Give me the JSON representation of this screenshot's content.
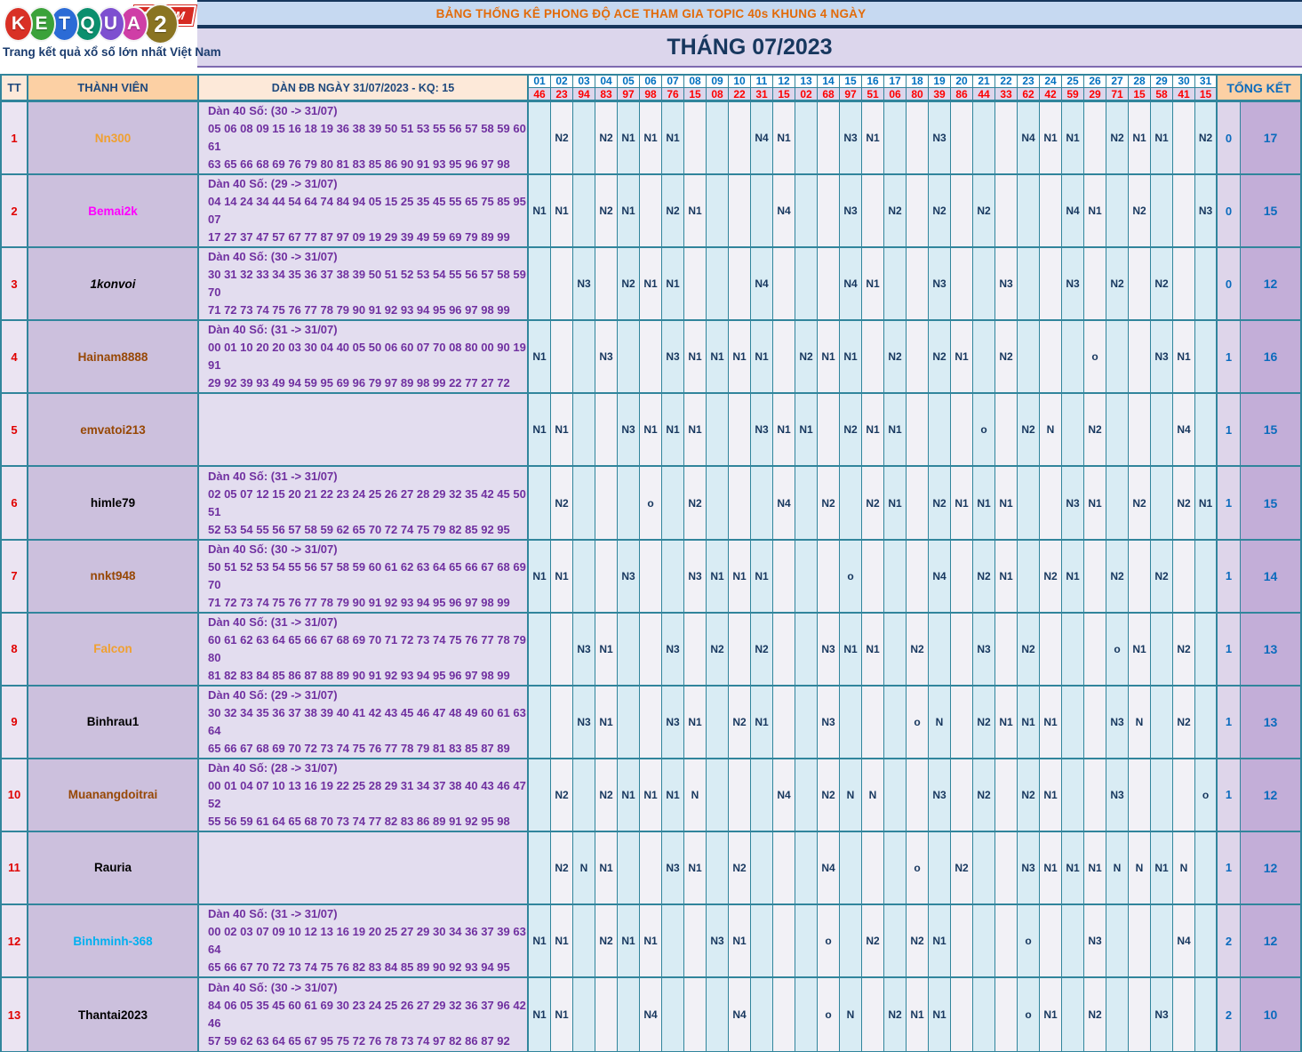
{
  "logo": {
    "letters": [
      {
        "ch": "K",
        "color": "#d93025"
      },
      {
        "ch": "E",
        "color": "#3ba23a"
      },
      {
        "ch": "T",
        "color": "#2b6bd6"
      },
      {
        "ch": "Q",
        "color": "#0b8f6e"
      },
      {
        "ch": "U",
        "color": "#7d4fd0"
      },
      {
        "ch": "A",
        "color": "#cf3ea6"
      },
      {
        "ch": "2",
        "color": "#8a7422"
      }
    ],
    "forum": "FORUM",
    "tagline": "Trang kết quả xổ số lớn nhất Việt Nam"
  },
  "header": {
    "banner": "BẢNG THỐNG KÊ PHONG ĐỘ ACE THAM GIA TOPIC 40s KHUNG 4 NGÀY",
    "month": "THÁNG 07/2023"
  },
  "table": {
    "tt_label": "TT",
    "member_label": "THÀNH VIÊN",
    "dan_label": "DÀN ĐB NGÀY 31/07/2023 - KQ: 15",
    "tongket_label": "TỔNG KẾT",
    "days": [
      "01",
      "02",
      "03",
      "04",
      "05",
      "06",
      "07",
      "08",
      "09",
      "10",
      "11",
      "12",
      "13",
      "14",
      "15",
      "16",
      "17",
      "18",
      "19",
      "20",
      "21",
      "22",
      "23",
      "24",
      "25",
      "26",
      "27",
      "28",
      "29",
      "30",
      "31"
    ],
    "results": [
      "46",
      "23",
      "94",
      "83",
      "97",
      "98",
      "76",
      "15",
      "08",
      "22",
      "31",
      "15",
      "02",
      "68",
      "97",
      "51",
      "06",
      "80",
      "39",
      "86",
      "44",
      "33",
      "62",
      "42",
      "59",
      "29",
      "71",
      "15",
      "58",
      "41",
      "15"
    ],
    "rows": [
      {
        "tt": "1",
        "member": "Nn300",
        "color": "#f0a030",
        "italic": false,
        "dan_title": "Dàn 40 Số: (30 -> 31/07)",
        "dan1": "05 06 08 09 15 16 18 19 36 38 39 50 51 53 55 56 57 58 59 60 61",
        "dan2": "63 65 66 68 69 76 79 80 81 83 85 86 90 91 93 95 96 97 98",
        "marks": [
          "",
          "N2",
          "",
          "N2",
          "N1",
          "N1",
          "N1",
          "",
          "",
          "",
          "N4",
          "N1",
          "",
          "",
          "N3",
          "N1",
          "",
          "",
          "N3",
          "",
          "",
          "",
          "N4",
          "N1",
          "N1",
          "",
          "N2",
          "N1",
          "N1",
          "",
          "N2"
        ],
        "tk1": "0",
        "tk2": "17"
      },
      {
        "tt": "2",
        "member": "Bemai2k",
        "color": "#ff00ff",
        "italic": false,
        "dan_title": "Dàn 40 Số: (29 -> 31/07)",
        "dan1": "04 14 24 34 44 54 64 74 84 94 05 15 25 35 45 55 65 75 85 95 07",
        "dan2": "17 27 37 47 57 67 77 87 97 09 19 29 39 49 59 69 79 89 99",
        "marks": [
          "N1",
          "N1",
          "",
          "N2",
          "N1",
          "",
          "N2",
          "N1",
          "",
          "",
          "",
          "N4",
          "",
          "",
          "N3",
          "",
          "N2",
          "",
          "N2",
          "",
          "N2",
          "",
          "",
          "",
          "N4",
          "N1",
          "",
          "N2",
          "",
          "",
          "N3"
        ],
        "tk1": "0",
        "tk2": "15"
      },
      {
        "tt": "3",
        "member": "1konvoi",
        "color": "#000000",
        "italic": true,
        "dan_title": "Dàn 40 Số: (30 -> 31/07)",
        "dan1": "30 31 32 33 34 35 36 37 38 39 50 51 52 53 54 55 56 57 58 59 70",
        "dan2": "71 72 73 74 75 76 77 78 79 90 91 92 93 94 95 96 97 98 99",
        "marks": [
          "",
          "",
          "N3",
          "",
          "N2",
          "N1",
          "N1",
          "",
          "",
          "",
          "N4",
          "",
          "",
          "",
          "N4",
          "N1",
          "",
          "",
          "N3",
          "",
          "",
          "N3",
          "",
          "",
          "N3",
          "",
          "N2",
          "",
          "N2",
          "",
          ""
        ],
        "tk1": "0",
        "tk2": "12"
      },
      {
        "tt": "4",
        "member": "Hainam8888",
        "color": "#974806",
        "italic": false,
        "dan_title": "Dàn 40 Số: (31 -> 31/07)",
        "dan1": "00 01 10 20 20 03 30 04 40 05 50 06 60 07 70 08 80 00 90 19 91",
        "dan2": "29 92 39 93 49 94 59 95 69 96 79 97 89 98 99 22 77 27 72",
        "marks": [
          "N1",
          "",
          "",
          "N3",
          "",
          "",
          "N3",
          "N1",
          "N1",
          "N1",
          "N1",
          "",
          "N2",
          "N1",
          "N1",
          "",
          "N2",
          "",
          "N2",
          "N1",
          "",
          "N2",
          "",
          "",
          "",
          "o",
          "",
          "",
          "N3",
          "N1",
          ""
        ],
        "tk1": "1",
        "tk2": "16"
      },
      {
        "tt": "5",
        "member": "emvatoi213",
        "color": "#974806",
        "italic": false,
        "dan_title": "",
        "dan1": "",
        "dan2": "",
        "marks": [
          "N1",
          "N1",
          "",
          "",
          "N3",
          "N1",
          "N1",
          "N1",
          "",
          "",
          "N3",
          "N1",
          "N1",
          "",
          "N2",
          "N1",
          "N1",
          "",
          "",
          "",
          "o",
          "",
          "N2",
          "N",
          "",
          "N2",
          "",
          "",
          "",
          "N4",
          ""
        ],
        "tk1": "1",
        "tk2": "15"
      },
      {
        "tt": "6",
        "member": "himle79",
        "color": "#000000",
        "italic": false,
        "dan_title": "Dàn 40 Số: (31 -> 31/07)",
        "dan1": "02 05 07 12 15 20 21 22 23 24 25 26 27 28 29 32 35 42 45 50 51",
        "dan2": "52 53 54 55 56 57 58 59 62 65 70 72 74 75 79 82 85 92 95",
        "marks": [
          "",
          "N2",
          "",
          "",
          "",
          "o",
          "",
          "N2",
          "",
          "",
          "",
          "N4",
          "",
          "N2",
          "",
          "N2",
          "N1",
          "",
          "N2",
          "N1",
          "N1",
          "N1",
          "",
          "",
          "N3",
          "N1",
          "",
          "N2",
          "",
          "N2",
          "N1"
        ],
        "tk1": "1",
        "tk2": "15"
      },
      {
        "tt": "7",
        "member": "nnkt948",
        "color": "#974806",
        "italic": false,
        "dan_title": "Dàn 40 Số: (30 -> 31/07)",
        "dan1": "50 51 52 53 54 55 56 57 58 59 60 61 62 63 64 65 66 67 68 69 70",
        "dan2": "71 72 73 74 75 76 77 78 79 90 91 92 93 94 95 96 97 98 99",
        "marks": [
          "N1",
          "N1",
          "",
          "",
          "N3",
          "",
          "",
          "N3",
          "N1",
          "N1",
          "N1",
          "",
          "",
          "",
          "o",
          "",
          "",
          "",
          "N4",
          "",
          "N2",
          "N1",
          "",
          "N2",
          "N1",
          "",
          "N2",
          "",
          "N2",
          "",
          ""
        ],
        "tk1": "1",
        "tk2": "14"
      },
      {
        "tt": "8",
        "member": "Falcon",
        "color": "#f0a030",
        "italic": false,
        "dan_title": "Dàn 40 Số: (31 -> 31/07)",
        "dan1": "60 61 62 63 64 65 66 67 68 69 70 71 72 73 74 75 76 77 78 79 80",
        "dan2": "81 82 83 84 85 86 87 88 89 90 91 92 93 94 95 96 97 98 99",
        "marks": [
          "",
          "",
          "N3",
          "N1",
          "",
          "",
          "N3",
          "",
          "N2",
          "",
          "N2",
          "",
          "",
          "N3",
          "N1",
          "N1",
          "",
          "N2",
          "",
          "",
          "N3",
          "",
          "N2",
          "",
          "",
          "",
          "o",
          "N1",
          "",
          "N2",
          ""
        ],
        "tk1": "1",
        "tk2": "13"
      },
      {
        "tt": "9",
        "member": "Binhrau1",
        "color": "#000000",
        "italic": false,
        "dan_title": "Dàn 40 Số: (29 -> 31/07)",
        "dan1": "30 32 34 35 36 37 38 39 40 41 42 43 45 46 47 48 49 60 61 63 64",
        "dan2": "65 66 67 68 69 70 72 73 74 75 76 77 78 79 81 83 85 87 89",
        "marks": [
          "",
          "",
          "N3",
          "N1",
          "",
          "",
          "N3",
          "N1",
          "",
          "N2",
          "N1",
          "",
          "",
          "N3",
          "",
          "",
          "",
          "o",
          "N",
          "",
          "N2",
          "N1",
          "N1",
          "N1",
          "",
          "",
          "N3",
          "N",
          "",
          "N2",
          ""
        ],
        "tk1": "1",
        "tk2": "13"
      },
      {
        "tt": "10",
        "member": "Muanangdoitrai",
        "color": "#974806",
        "italic": false,
        "dan_title": "Dàn 40 Số: (28 -> 31/07)",
        "dan1": "00 01 04 07 10 13 16 19 22 25 28 29 31 34 37 38 40 43 46 47 52",
        "dan2": "55 56 59 61 64 65 68 70 73 74 77 82 83 86 89 91 92 95 98",
        "marks": [
          "",
          "N2",
          "",
          "N2",
          "N1",
          "N1",
          "N1",
          "N",
          "",
          "",
          "",
          "N4",
          "",
          "N2",
          "N",
          "N",
          "",
          "",
          "N3",
          "",
          "N2",
          "",
          "N2",
          "N1",
          "",
          "",
          "N3",
          "",
          "",
          "",
          "o"
        ],
        "tk1": "1",
        "tk2": "12"
      },
      {
        "tt": "11",
        "member": "Rauria",
        "color": "#000000",
        "italic": false,
        "dan_title": "",
        "dan1": "",
        "dan2": "",
        "marks": [
          "",
          "N2",
          "N",
          "N1",
          "",
          "",
          "N3",
          "N1",
          "",
          "N2",
          "",
          "",
          "",
          "N4",
          "",
          "",
          "",
          "o",
          "",
          "N2",
          "",
          "",
          "N3",
          "N1",
          "N1",
          "N1",
          "N",
          "N",
          "N1",
          "N",
          ""
        ],
        "tk1": "1",
        "tk2": "12"
      },
      {
        "tt": "12",
        "member": "Binhminh-368",
        "color": "#00b0f0",
        "italic": false,
        "dan_title": "Dàn 40 Số: (31 -> 31/07)",
        "dan1": "00 02 03 07 09 10 12 13 16 19 20 25 27 29 30 34 36 37 39 63 64",
        "dan2": "65 66 67 70 72 73 74 75 76 82 83 84 85 89 90 92 93 94 95",
        "marks": [
          "N1",
          "N1",
          "",
          "N2",
          "N1",
          "N1",
          "",
          "",
          "N3",
          "N1",
          "",
          "",
          "",
          "o",
          "",
          "N2",
          "",
          "N2",
          "N1",
          "",
          "",
          "",
          "o",
          "",
          "",
          "N3",
          "",
          "",
          "",
          "N4",
          ""
        ],
        "tk1": "2",
        "tk2": "12"
      },
      {
        "tt": "13",
        "member": "Thantai2023",
        "color": "#000000",
        "italic": false,
        "dan_title": "Dàn 40 Số: (30 -> 31/07)",
        "dan1": "84 06 05 35 45 60 61 69 30 23 24 25 26 27 29 32 36 37 96 42 46",
        "dan2": "57 59 62 63 64 65 67 95 75 72 76 78 73 74 97 82 86 87 92",
        "marks": [
          "N1",
          "N1",
          "",
          "",
          "",
          "N4",
          "",
          "",
          "",
          "N4",
          "",
          "",
          "",
          "o",
          "N",
          "",
          "N2",
          "N1",
          "N1",
          "",
          "",
          "",
          "o",
          "N1",
          "",
          "N2",
          "",
          "",
          "N3",
          "",
          ""
        ],
        "tk1": "2",
        "tk2": "10"
      }
    ]
  }
}
